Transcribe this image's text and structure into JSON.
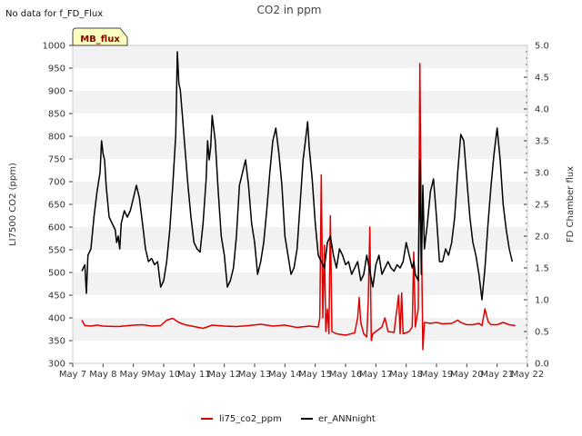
{
  "note": "No data for f_FD_Flux",
  "badge": "MB_flux",
  "chart_data": {
    "type": "line",
    "title": "CO2 in ppm",
    "ylabel": "LI7500 CO2 (ppm)",
    "y2label": "FD Chamber flux",
    "xlabel": "",
    "categories": [
      "May 7",
      "May 8",
      "May 9",
      "May 10",
      "May 11",
      "May 12",
      "May 13",
      "May 14",
      "May 15",
      "May 16",
      "May 17",
      "May 18",
      "May 19",
      "May 20",
      "May 21",
      "May 22"
    ],
    "xlim": [
      0,
      15
    ],
    "ylim": [
      300,
      1000
    ],
    "y_ticks": [
      "300",
      "350",
      "400",
      "450",
      "500",
      "550",
      "600",
      "650",
      "700",
      "750",
      "800",
      "850",
      "900",
      "950",
      "1000"
    ],
    "y2lim": [
      0.0,
      5.0
    ],
    "y2_ticks": [
      "0.0",
      "0.5",
      "1.0",
      "1.5",
      "2.0",
      "2.5",
      "3.0",
      "3.5",
      "4.0",
      "4.5",
      "5.0"
    ],
    "series": [
      {
        "name": "li75_co2_ppm",
        "color": "#dd0000",
        "axis": "left",
        "points": [
          [
            0.3,
            395
          ],
          [
            0.4,
            383
          ],
          [
            0.6,
            382
          ],
          [
            0.8,
            384
          ],
          [
            1.0,
            382
          ],
          [
            1.5,
            381
          ],
          [
            2.0,
            384
          ],
          [
            2.3,
            385
          ],
          [
            2.6,
            382
          ],
          [
            2.9,
            383
          ],
          [
            3.1,
            395
          ],
          [
            3.3,
            399
          ],
          [
            3.5,
            390
          ],
          [
            3.7,
            385
          ],
          [
            4.0,
            381
          ],
          [
            4.3,
            377
          ],
          [
            4.6,
            384
          ],
          [
            5.0,
            382
          ],
          [
            5.4,
            381
          ],
          [
            5.8,
            383
          ],
          [
            6.2,
            386
          ],
          [
            6.6,
            382
          ],
          [
            7.0,
            384
          ],
          [
            7.4,
            379
          ],
          [
            7.8,
            382
          ],
          [
            8.1,
            380
          ],
          [
            8.15,
            400
          ],
          [
            8.2,
            715
          ],
          [
            8.25,
            400
          ],
          [
            8.3,
            560
          ],
          [
            8.35,
            370
          ],
          [
            8.4,
            420
          ],
          [
            8.45,
            365
          ],
          [
            8.5,
            625
          ],
          [
            8.55,
            370
          ],
          [
            8.7,
            365
          ],
          [
            9.0,
            362
          ],
          [
            9.3,
            367
          ],
          [
            9.4,
            400
          ],
          [
            9.45,
            445
          ],
          [
            9.5,
            390
          ],
          [
            9.6,
            365
          ],
          [
            9.7,
            358
          ],
          [
            9.75,
            440
          ],
          [
            9.8,
            600
          ],
          [
            9.85,
            350
          ],
          [
            9.9,
            365
          ],
          [
            10.0,
            370
          ],
          [
            10.2,
            380
          ],
          [
            10.3,
            400
          ],
          [
            10.4,
            370
          ],
          [
            10.6,
            368
          ],
          [
            10.75,
            450
          ],
          [
            10.8,
            365
          ],
          [
            10.85,
            455
          ],
          [
            10.9,
            365
          ],
          [
            11.1,
            370
          ],
          [
            11.2,
            380
          ],
          [
            11.25,
            545
          ],
          [
            11.3,
            380
          ],
          [
            11.4,
            420
          ],
          [
            11.45,
            960
          ],
          [
            11.5,
            600
          ],
          [
            11.55,
            330
          ],
          [
            11.6,
            390
          ],
          [
            11.8,
            388
          ],
          [
            12.0,
            390
          ],
          [
            12.2,
            387
          ],
          [
            12.5,
            388
          ],
          [
            12.7,
            395
          ],
          [
            12.8,
            390
          ],
          [
            13.0,
            385
          ],
          [
            13.2,
            385
          ],
          [
            13.4,
            388
          ],
          [
            13.5,
            383
          ],
          [
            13.6,
            420
          ],
          [
            13.7,
            392
          ],
          [
            13.8,
            385
          ],
          [
            14.0,
            385
          ],
          [
            14.2,
            390
          ],
          [
            14.4,
            385
          ],
          [
            14.6,
            383
          ]
        ]
      },
      {
        "name": "er_ANNnight",
        "color": "#000000",
        "axis": "right",
        "points": [
          [
            0.3,
            1.45
          ],
          [
            0.4,
            1.55
          ],
          [
            0.45,
            1.1
          ],
          [
            0.5,
            1.7
          ],
          [
            0.6,
            1.8
          ],
          [
            0.7,
            2.3
          ],
          [
            0.8,
            2.7
          ],
          [
            0.9,
            3.0
          ],
          [
            0.95,
            3.5
          ],
          [
            1.0,
            3.3
          ],
          [
            1.05,
            3.2
          ],
          [
            1.1,
            2.8
          ],
          [
            1.2,
            2.3
          ],
          [
            1.3,
            2.2
          ],
          [
            1.4,
            2.1
          ],
          [
            1.45,
            1.9
          ],
          [
            1.5,
            2.0
          ],
          [
            1.55,
            1.8
          ],
          [
            1.6,
            2.2
          ],
          [
            1.7,
            2.4
          ],
          [
            1.8,
            2.3
          ],
          [
            1.9,
            2.4
          ],
          [
            2.0,
            2.6
          ],
          [
            2.1,
            2.8
          ],
          [
            2.2,
            2.6
          ],
          [
            2.3,
            2.2
          ],
          [
            2.4,
            1.8
          ],
          [
            2.5,
            1.6
          ],
          [
            2.6,
            1.65
          ],
          [
            2.7,
            1.55
          ],
          [
            2.8,
            1.6
          ],
          [
            2.9,
            1.2
          ],
          [
            3.0,
            1.3
          ],
          [
            3.1,
            1.6
          ],
          [
            3.2,
            2.1
          ],
          [
            3.3,
            2.8
          ],
          [
            3.4,
            3.6
          ],
          [
            3.45,
            4.9
          ],
          [
            3.5,
            4.4
          ],
          [
            3.55,
            4.3
          ],
          [
            3.6,
            4.0
          ],
          [
            3.7,
            3.4
          ],
          [
            3.8,
            2.8
          ],
          [
            3.9,
            2.3
          ],
          [
            4.0,
            1.9
          ],
          [
            4.1,
            1.8
          ],
          [
            4.2,
            1.75
          ],
          [
            4.3,
            2.2
          ],
          [
            4.4,
            2.9
          ],
          [
            4.45,
            3.5
          ],
          [
            4.5,
            3.2
          ],
          [
            4.55,
            3.4
          ],
          [
            4.6,
            3.9
          ],
          [
            4.7,
            3.5
          ],
          [
            4.8,
            2.7
          ],
          [
            4.9,
            2.0
          ],
          [
            5.0,
            1.7
          ],
          [
            5.1,
            1.2
          ],
          [
            5.2,
            1.3
          ],
          [
            5.3,
            1.5
          ],
          [
            5.4,
            2.0
          ],
          [
            5.5,
            2.8
          ],
          [
            5.6,
            3.0
          ],
          [
            5.7,
            3.2
          ],
          [
            5.8,
            2.8
          ],
          [
            5.9,
            2.2
          ],
          [
            6.0,
            1.9
          ],
          [
            6.1,
            1.4
          ],
          [
            6.2,
            1.6
          ],
          [
            6.3,
            1.9
          ],
          [
            6.4,
            2.4
          ],
          [
            6.5,
            3.0
          ],
          [
            6.6,
            3.5
          ],
          [
            6.7,
            3.7
          ],
          [
            6.8,
            3.3
          ],
          [
            6.9,
            2.8
          ],
          [
            7.0,
            2.0
          ],
          [
            7.1,
            1.7
          ],
          [
            7.2,
            1.4
          ],
          [
            7.3,
            1.5
          ],
          [
            7.4,
            1.8
          ],
          [
            7.5,
            2.5
          ],
          [
            7.6,
            3.2
          ],
          [
            7.7,
            3.6
          ],
          [
            7.75,
            3.8
          ],
          [
            7.8,
            3.4
          ],
          [
            7.9,
            2.9
          ],
          [
            8.0,
            2.2
          ],
          [
            8.1,
            1.7
          ],
          [
            8.2,
            1.6
          ],
          [
            8.3,
            1.5
          ],
          [
            8.4,
            1.9
          ],
          [
            8.5,
            2.0
          ],
          [
            8.6,
            1.7
          ],
          [
            8.7,
            1.5
          ],
          [
            8.8,
            1.8
          ],
          [
            8.9,
            1.7
          ],
          [
            9.0,
            1.55
          ],
          [
            9.1,
            1.6
          ],
          [
            9.2,
            1.4
          ],
          [
            9.3,
            1.5
          ],
          [
            9.4,
            1.6
          ],
          [
            9.5,
            1.3
          ],
          [
            9.6,
            1.4
          ],
          [
            9.7,
            1.7
          ],
          [
            9.8,
            1.45
          ],
          [
            9.9,
            1.2
          ],
          [
            10.0,
            1.55
          ],
          [
            10.1,
            1.7
          ],
          [
            10.2,
            1.4
          ],
          [
            10.3,
            1.5
          ],
          [
            10.4,
            1.6
          ],
          [
            10.5,
            1.5
          ],
          [
            10.6,
            1.45
          ],
          [
            10.7,
            1.55
          ],
          [
            10.8,
            1.5
          ],
          [
            10.9,
            1.6
          ],
          [
            11.0,
            1.9
          ],
          [
            11.1,
            1.7
          ],
          [
            11.2,
            1.5
          ],
          [
            11.25,
            1.6
          ],
          [
            11.3,
            1.4
          ],
          [
            11.4,
            1.3
          ],
          [
            11.45,
            3.2
          ],
          [
            11.5,
            1.4
          ],
          [
            11.55,
            2.8
          ],
          [
            11.6,
            1.8
          ],
          [
            11.7,
            2.2
          ],
          [
            11.8,
            2.7
          ],
          [
            11.9,
            2.9
          ],
          [
            12.0,
            2.3
          ],
          [
            12.1,
            1.6
          ],
          [
            12.2,
            1.6
          ],
          [
            12.3,
            1.8
          ],
          [
            12.4,
            1.7
          ],
          [
            12.5,
            1.9
          ],
          [
            12.6,
            2.3
          ],
          [
            12.7,
            3.0
          ],
          [
            12.8,
            3.6
          ],
          [
            12.9,
            3.5
          ],
          [
            13.0,
            2.9
          ],
          [
            13.1,
            2.3
          ],
          [
            13.2,
            1.9
          ],
          [
            13.3,
            1.7
          ],
          [
            13.4,
            1.4
          ],
          [
            13.5,
            1.0
          ],
          [
            13.6,
            1.5
          ],
          [
            13.7,
            2.2
          ],
          [
            13.8,
            2.8
          ],
          [
            13.9,
            3.3
          ],
          [
            14.0,
            3.7
          ],
          [
            14.1,
            3.2
          ],
          [
            14.2,
            2.5
          ],
          [
            14.3,
            2.1
          ],
          [
            14.4,
            1.8
          ],
          [
            14.5,
            1.6
          ]
        ]
      }
    ],
    "legend": [
      "li75_co2_ppm",
      "er_ANNnight"
    ],
    "legend_position": "bottom-center",
    "grid": "horizontal bands"
  }
}
